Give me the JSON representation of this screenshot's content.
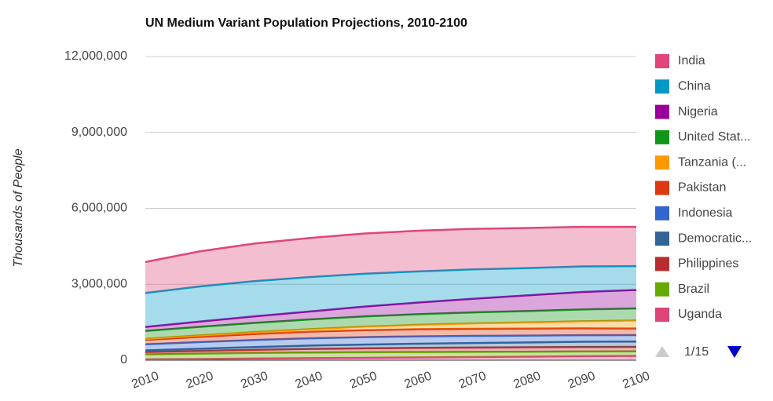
{
  "chart_data": {
    "type": "area",
    "stacked": true,
    "title": "UN Medium Variant Population Projections, 2010-2100",
    "y_label": "Thousands of People",
    "x": [
      2010,
      2020,
      2030,
      2040,
      2050,
      2060,
      2070,
      2080,
      2090,
      2100
    ],
    "xlim": [
      2010,
      2100
    ],
    "xticks": [
      2010,
      2020,
      2030,
      2040,
      2050,
      2060,
      2070,
      2080,
      2090,
      2100
    ],
    "ylim": [
      0,
      12000000
    ],
    "yticks": [
      {
        "value": 0,
        "label": "0"
      },
      {
        "value": 3000000,
        "label": "3,000,000"
      },
      {
        "value": 6000000,
        "label": "6,000,000"
      },
      {
        "value": 9000000,
        "label": "9,000,000"
      },
      {
        "value": 12000000,
        "label": "12,000,000"
      }
    ],
    "grid": true,
    "legend_position": "right",
    "legend_page": "1/15",
    "series": [
      {
        "name": "India",
        "color": "#e0457b",
        "values": [
          1225000,
          1387000,
          1484000,
          1544000,
          1592000,
          1608000,
          1603000,
          1582000,
          1563000,
          1551000
        ]
      },
      {
        "name": "China",
        "color": "#0099c6",
        "values": [
          1341000,
          1388000,
          1393000,
          1360000,
          1296000,
          1230000,
          1160000,
          1080000,
          1010000,
          941000
        ]
      },
      {
        "name": "Nigeria",
        "color": "#990099",
        "values": [
          158000,
          207000,
          258000,
          314000,
          390000,
          460000,
          540000,
          620000,
          690000,
          730000
        ]
      },
      {
        "name": "United Stat...",
        "color": "#109618",
        "values": [
          310000,
          337000,
          362000,
          383000,
          403000,
          420000,
          436000,
          449000,
          466000,
          478000
        ]
      },
      {
        "name": "Tanzania (...",
        "color": "#ff9900",
        "values": [
          45000,
          60000,
          78000,
          100000,
          138000,
          175000,
          210000,
          245000,
          280000,
          316000
        ]
      },
      {
        "name": "Pakistan",
        "color": "#dc3912",
        "values": [
          174000,
          205000,
          234000,
          260000,
          275000,
          280000,
          280000,
          275000,
          270000,
          261000
        ]
      },
      {
        "name": "Indonesia",
        "color": "#3366cc",
        "values": [
          240000,
          263000,
          280000,
          290000,
          293000,
          290000,
          282000,
          270000,
          260000,
          254000
        ]
      },
      {
        "name": "Democratic...",
        "color": "#316395",
        "values": [
          66000,
          86000,
          107000,
          130000,
          149000,
          165000,
          180000,
          192000,
          205000,
          212000
        ]
      },
      {
        "name": "Philippines",
        "color": "#b82e2e",
        "values": [
          93000,
          110000,
          127000,
          142000,
          155000,
          165000,
          170000,
          175000,
          178000,
          178000
        ]
      },
      {
        "name": "Brazil",
        "color": "#66aa00",
        "values": [
          195000,
          210000,
          220000,
          222000,
          220000,
          213000,
          205000,
          195000,
          185000,
          177000
        ]
      },
      {
        "name": "Uganda",
        "color": "#dd4477",
        "values": [
          33000,
          48000,
          65000,
          82000,
          94000,
          110000,
          125000,
          140000,
          160000,
          171000
        ]
      }
    ]
  }
}
